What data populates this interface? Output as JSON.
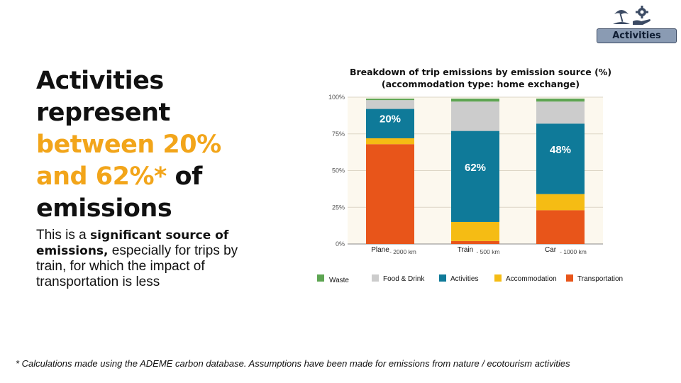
{
  "badge": {
    "label": "Activities",
    "icons": [
      "beach-umbrella-icon",
      "gear-hand-icon"
    ]
  },
  "headline": {
    "line1": "Activities",
    "line2": "represent",
    "line3": "between 20%",
    "line4_accent": "and 62%*",
    "line4_rest": " of",
    "line5": "emissions"
  },
  "body": {
    "intro": "This is a ",
    "bold": "significant source of emissions,",
    "rest": " especially for trips by train, for which the impact of transportation is less"
  },
  "footnote": "* Calculations made using the ADEME carbon database. Assumptions have been made for emissions from nature / ecotourism activities",
  "colors": {
    "accent": "#f2a51a",
    "Waste": "#5da552",
    "Food & Drink": "#cccccc",
    "Activities": "#0f7a99",
    "Accommodation": "#f5bc14",
    "Transportation": "#e8551a",
    "plot_bg": "#fcf8ee"
  },
  "chart_data": {
    "type": "bar",
    "stacked": true,
    "title_line1": "Breakdown of trip emissions by emission source (%)",
    "title_line2": "(accommodation type: home exchange)",
    "categories": [
      "Plane",
      "Train",
      "Car"
    ],
    "category_notes": [
      "- 2000 km",
      "- 500 km",
      "- 1000 km"
    ],
    "yticks": [
      "0%",
      "25%",
      "50%",
      "75%",
      "100%"
    ],
    "ylim": [
      0,
      100
    ],
    "series": [
      {
        "name": "Transportation",
        "values": [
          68,
          2,
          23
        ]
      },
      {
        "name": "Accommodation",
        "values": [
          4,
          13,
          11
        ]
      },
      {
        "name": "Activities",
        "values": [
          20,
          62,
          48
        ]
      },
      {
        "name": "Food & Drink",
        "values": [
          6,
          20,
          15
        ]
      },
      {
        "name": "Waste",
        "values": [
          1,
          2,
          2
        ]
      }
    ],
    "data_labels": [
      {
        "category": "Plane",
        "series": "Activities",
        "text": "20%"
      },
      {
        "category": "Train",
        "series": "Activities",
        "text": "62%"
      },
      {
        "category": "Car",
        "series": "Activities",
        "text": "48%"
      }
    ],
    "legend": [
      "Waste",
      "Food & Drink",
      "Activities",
      "Accommodation",
      "Transportation"
    ],
    "legend_position": "bottom"
  }
}
